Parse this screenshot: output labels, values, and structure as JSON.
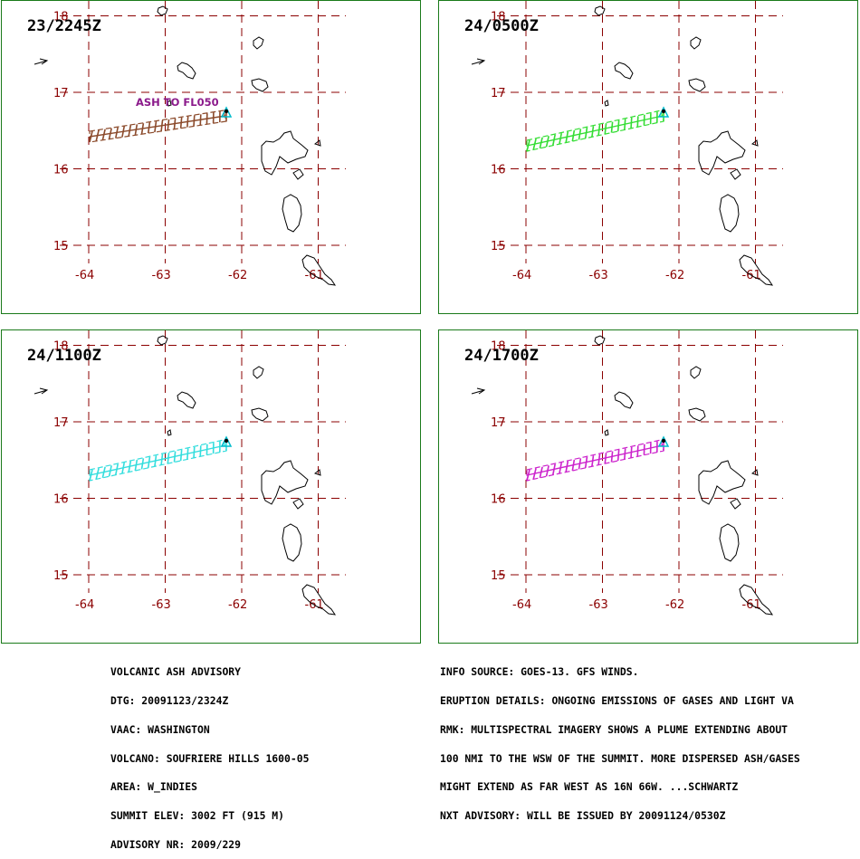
{
  "panels": [
    {
      "title": "23/2245Z",
      "plume_color": "#8b4a2b",
      "annotation": "ASH TO FL050"
    },
    {
      "title": "24/0500Z",
      "plume_color": "#33dd33",
      "annotation": ""
    },
    {
      "title": "24/1100Z",
      "plume_color": "#33dddd",
      "annotation": ""
    },
    {
      "title": "24/1700Z",
      "plume_color": "#cc22cc",
      "annotation": ""
    }
  ],
  "axes": {
    "lat_labels": [
      "18",
      "17",
      "16",
      "15"
    ],
    "lon_labels": [
      "-64",
      "-63",
      "-62",
      "-61"
    ]
  },
  "colors": {
    "grid": "#8b0000",
    "coast": "#000000",
    "volcano": "#00bbcc",
    "annotation": "#8b1a8b",
    "border": "#1a7a1a"
  },
  "advisory_left": [
    "VOLCANIC ASH ADVISORY",
    "DTG: 20091123/2324Z",
    "VAAC: WASHINGTON",
    "VOLCANO: SOUFRIERE HILLS 1600-05",
    "AREA: W_INDIES",
    "SUMMIT ELEV: 3002 FT (915 M)",
    "ADVISORY NR: 2009/229"
  ],
  "advisory_right": [
    "INFO SOURCE: GOES-13. GFS WINDS.",
    "ERUPTION DETAILS: ONGOING EMISSIONS OF GASES AND LIGHT VA",
    "RMK: MULTISPECTRAL IMAGERY SHOWS A PLUME EXTENDING ABOUT",
    "100 NMI TO THE WSW OF THE SUMMIT. MORE DISPERSED ASH/GASES",
    "MIGHT EXTEND AS FAR WEST AS 16N 66W. ...SCHWARTZ",
    "NXT ADVISORY: WILL BE ISSUED BY 20091124/0530Z"
  ]
}
